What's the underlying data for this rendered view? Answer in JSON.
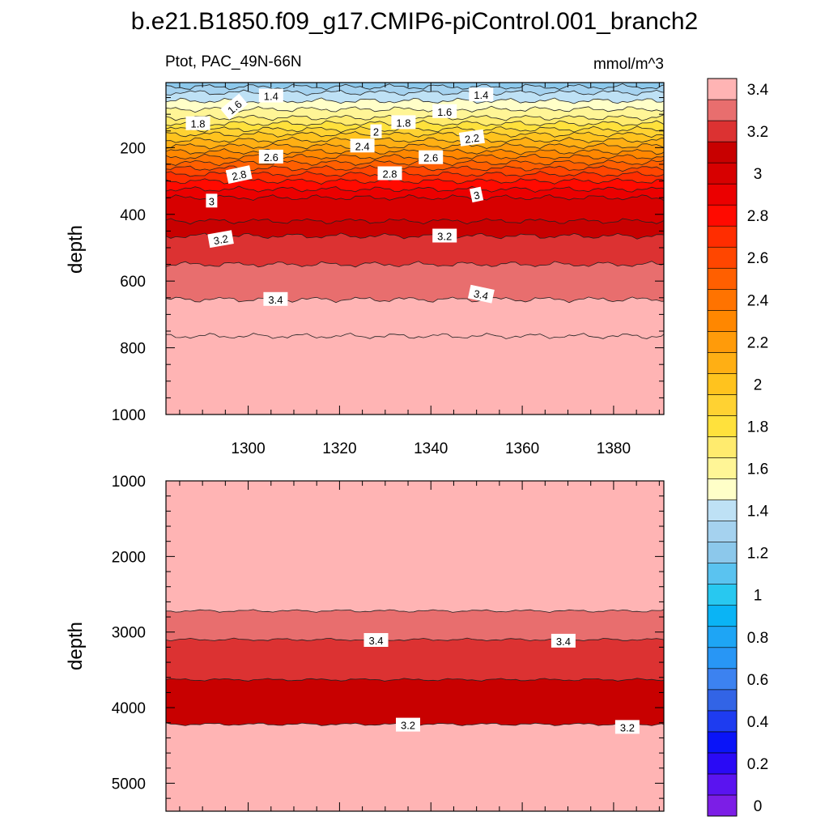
{
  "title": "b.e21.B1850.f09_g17.CMIP6-piControl.001_branch2",
  "subtitle_left": "Ptot, PAC_49N-66N",
  "subtitle_right": "mmol/m^3",
  "chart_data": [
    {
      "type": "contour",
      "panel": "upper",
      "variable": "Ptot",
      "region": "PAC_49N-66N",
      "units": "mmol/m^3",
      "xlabel": "",
      "ylabel": "depth",
      "xlim": [
        1282,
        1391
      ],
      "ylim": [
        1000,
        5
      ],
      "y_inverted": true,
      "x_ticks": [
        1300,
        1320,
        1340,
        1360,
        1380
      ],
      "y_ticks": [
        200,
        400,
        600,
        800,
        1000
      ],
      "contour_interval": 0.1,
      "band_depths": [
        {
          "level": 1.3,
          "depth": 18
        },
        {
          "level": 1.4,
          "depth": 35
        },
        {
          "level": 1.5,
          "depth": 60
        },
        {
          "level": 1.6,
          "depth": 85
        },
        {
          "level": 1.7,
          "depth": 110
        },
        {
          "level": 1.8,
          "depth": 128
        },
        {
          "level": 1.9,
          "depth": 145
        },
        {
          "level": 2.0,
          "depth": 160
        },
        {
          "level": 2.1,
          "depth": 178
        },
        {
          "level": 2.2,
          "depth": 195
        },
        {
          "level": 2.3,
          "depth": 212
        },
        {
          "level": 2.4,
          "depth": 228
        },
        {
          "level": 2.5,
          "depth": 245
        },
        {
          "level": 2.6,
          "depth": 262
        },
        {
          "level": 2.7,
          "depth": 280
        },
        {
          "level": 2.8,
          "depth": 300
        },
        {
          "level": 2.9,
          "depth": 325
        },
        {
          "level": 3.0,
          "depth": 350
        },
        {
          "level": 3.1,
          "depth": 420
        },
        {
          "level": 3.2,
          "depth": 465
        },
        {
          "level": 3.3,
          "depth": 550
        },
        {
          "level": 3.4,
          "depth": 655
        },
        {
          "level": 3.5,
          "depth": 765
        }
      ],
      "contour_labels": [
        {
          "text": "1.4",
          "x": 1305,
          "depth": 45
        },
        {
          "text": "1.6",
          "x": 1297,
          "depth": 78,
          "angle": -40
        },
        {
          "text": "1.8",
          "x": 1289,
          "depth": 128
        },
        {
          "text": "1.4",
          "x": 1351,
          "depth": 42
        },
        {
          "text": "1.6",
          "x": 1343,
          "depth": 92
        },
        {
          "text": "1.8",
          "x": 1334,
          "depth": 125
        },
        {
          "text": "2",
          "x": 1328,
          "depth": 152
        },
        {
          "text": "2.2",
          "x": 1349,
          "depth": 172,
          "angle": -8
        },
        {
          "text": "2.4",
          "x": 1325,
          "depth": 195
        },
        {
          "text": "2.6",
          "x": 1305,
          "depth": 228
        },
        {
          "text": "2.6",
          "x": 1340,
          "depth": 230
        },
        {
          "text": "2.8",
          "x": 1298,
          "depth": 282,
          "angle": -12
        },
        {
          "text": "2.8",
          "x": 1331,
          "depth": 278
        },
        {
          "text": "3",
          "x": 1292,
          "depth": 360
        },
        {
          "text": "3",
          "x": 1350,
          "depth": 342,
          "angle": -12
        },
        {
          "text": "3.2",
          "x": 1294,
          "depth": 475,
          "angle": -10
        },
        {
          "text": "3.2",
          "x": 1343,
          "depth": 465
        },
        {
          "text": "3.4",
          "x": 1306,
          "depth": 655
        },
        {
          "text": "3.4",
          "x": 1351,
          "depth": 640,
          "angle": 12
        }
      ]
    },
    {
      "type": "contour",
      "panel": "lower",
      "variable": "Ptot",
      "region": "PAC_49N-66N",
      "units": "mmol/m^3",
      "xlabel": "",
      "ylabel": "depth",
      "xlim": [
        1282,
        1391
      ],
      "ylim": [
        5370,
        1000
      ],
      "y_inverted": true,
      "x_ticks": [
        1300,
        1320,
        1340,
        1360,
        1380
      ],
      "y_ticks": [
        1000,
        2000,
        3000,
        4000,
        5000
      ],
      "band_depths": [
        {
          "level": 3.5,
          "depth": 2720
        },
        {
          "level": 3.4,
          "depth": 3100
        },
        {
          "level": 3.3,
          "depth": 3630
        },
        {
          "level": 3.2,
          "depth": 4220
        }
      ],
      "contour_labels": [
        {
          "text": "3.4",
          "x": 1328,
          "depth": 3110
        },
        {
          "text": "3.4",
          "x": 1369,
          "depth": 3120
        },
        {
          "text": "3.2",
          "x": 1335,
          "depth": 4230
        },
        {
          "text": "3.2",
          "x": 1383,
          "depth": 4260
        }
      ]
    }
  ],
  "colorbar": {
    "labels": [
      "0",
      "0.2",
      "0.4",
      "0.6",
      "0.8",
      "1",
      "1.2",
      "1.4",
      "1.6",
      "1.8",
      "2",
      "2.2",
      "2.4",
      "2.6",
      "2.8",
      "3",
      "3.2",
      "3.4"
    ],
    "label_every": 2,
    "colors": [
      "#7c1ee6",
      "#5a14f0",
      "#2a0af5",
      "#0a14f8",
      "#1e3cf0",
      "#3264e6",
      "#3c82f0",
      "#2896f5",
      "#1ea5f5",
      "#0ab4f5",
      "#28c8f0",
      "#5ac3f0",
      "#8cc8eb",
      "#a5d2ef",
      "#bee1f5",
      "#ffffc8",
      "#fff596",
      "#ffeb6e",
      "#ffe13c",
      "#ffd232",
      "#ffc31e",
      "#ffaf14",
      "#ff9b0a",
      "#ff8700",
      "#ff7300",
      "#ff5f00",
      "#ff4600",
      "#ff2d00",
      "#ff0a00",
      "#eb0000",
      "#d70000",
      "#c80000",
      "#dc3232",
      "#e86e6e",
      "#ffb4b4"
    ]
  }
}
